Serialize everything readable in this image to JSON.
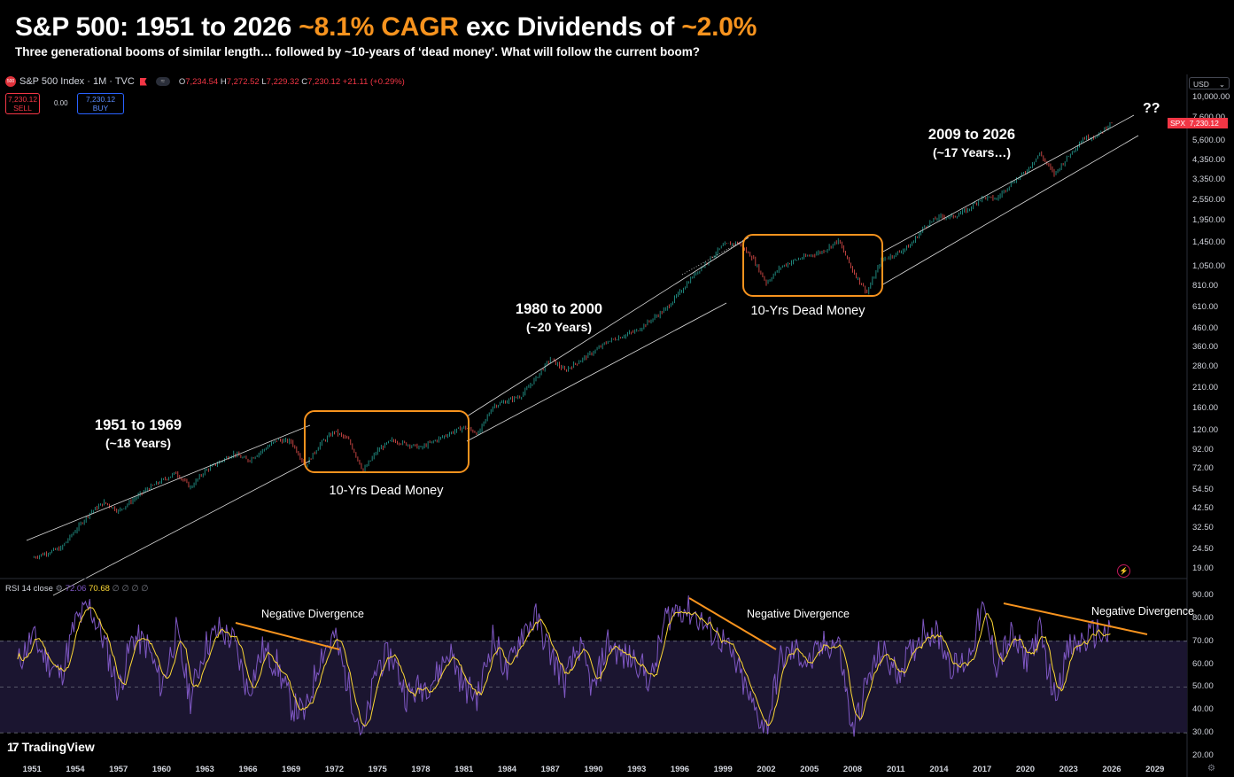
{
  "header": {
    "title_main": "S&P 500: 1951 to 2026",
    "title_hl1": "~8.1% CAGR",
    "title_mid": "exc Dividends of",
    "title_hl2": "~2.0%",
    "subtitle": "Three generational booms of similar length… followed by ~10-years of ‘dead money’. What will follow the current boom?"
  },
  "toolbar": {
    "symbol_badge": "500",
    "symbol": "S&P 500 Index · 1M · TVC",
    "o_label": "O",
    "o": "7,234.54",
    "h_label": "H",
    "h": "7,272.52",
    "l_label": "L",
    "l": "7,229.32",
    "c_label": "C",
    "c": "7,230.12",
    "change": "+21.11 (+0.29%)",
    "sell_price": "7,230.12",
    "sell_label": "SELL",
    "spread": "0.00",
    "buy_price": "7,230.12",
    "buy_label": "BUY",
    "currency": "USD"
  },
  "price_tag": {
    "symbol": "SPX",
    "value": "7,230.12"
  },
  "rsi_legend": {
    "label": "RSI 14 close",
    "rsi": "72.06",
    "ma": "70.68",
    "extra": "∅ ∅ ∅ ∅"
  },
  "annotations": {
    "boom1": {
      "title": "1951 to 1969",
      "sub": "(~18 Years)"
    },
    "boom2": {
      "title": "1980 to 2000",
      "sub": "(~20 Years)"
    },
    "boom3": {
      "title": "2009 to 2026",
      "sub": "(~17 Years…)"
    },
    "dead1": "10-Yrs Dead Money",
    "dead2": "10-Yrs Dead Money",
    "neg1": "Negative Divergence",
    "neg2": "Negative Divergence",
    "neg3": "Negative Divergence",
    "question": "??"
  },
  "branding": {
    "logo_text": "TradingView"
  },
  "colors": {
    "up": "#26a69a",
    "down": "#ef5350",
    "highlight": "#f7931e",
    "rsi": "#7e57c2",
    "rsi_ma": "#fdd835"
  },
  "chart_data": [
    {
      "type": "line",
      "name": "price",
      "scale": "log",
      "x_ticks": [
        "1951",
        "1954",
        "1957",
        "1960",
        "1963",
        "1966",
        "1969",
        "1972",
        "1975",
        "1978",
        "1981",
        "1984",
        "1987",
        "1990",
        "1993",
        "1996",
        "1999",
        "2002",
        "2005",
        "2008",
        "2011",
        "2014",
        "2017",
        "2020",
        "2023",
        "2026",
        "2029"
      ],
      "y_ticks": [
        "10,000.00",
        "7,600.00",
        "5,600.00",
        "4,350.00",
        "3,350.00",
        "2,550.00",
        "1,950.00",
        "1,450.00",
        "1,050.00",
        "810.00",
        "610.00",
        "460.00",
        "360.00",
        "280.00",
        "210.00",
        "160.00",
        "120.00",
        "92.00",
        "72.00",
        "54.50",
        "42.50",
        "32.50",
        "24.50",
        "19.00"
      ],
      "ylim": [
        19,
        10000
      ],
      "xlim": [
        1950,
        2030
      ],
      "x": [
        1951,
        1953,
        1955,
        1956,
        1957,
        1959,
        1961,
        1962,
        1963,
        1965,
        1966,
        1968,
        1969,
        1970,
        1971,
        1972,
        1973,
        1974,
        1975,
        1976,
        1978,
        1980,
        1981,
        1982,
        1983,
        1985,
        1986,
        1987,
        1988,
        1990,
        1991,
        1993,
        1995,
        1996,
        1997,
        1998,
        1999,
        2000,
        2001,
        2002,
        2003,
        2004,
        2006,
        2007,
        2008,
        2009,
        2010,
        2011,
        2012,
        2013,
        2014,
        2015,
        2016,
        2017,
        2018,
        2019,
        2020,
        2021,
        2022,
        2023,
        2024,
        2025,
        2026
      ],
      "values": [
        22,
        25,
        40,
        46,
        41,
        55,
        68,
        56,
        70,
        88,
        80,
        105,
        103,
        75,
        100,
        118,
        105,
        70,
        92,
        105,
        95,
        115,
        125,
        115,
        165,
        190,
        240,
        310,
        265,
        340,
        390,
        450,
        600,
        750,
        950,
        1150,
        1400,
        1450,
        1200,
        850,
        1050,
        1150,
        1300,
        1500,
        1000,
        750,
        1150,
        1250,
        1400,
        1800,
        2050,
        2050,
        2250,
        2650,
        2600,
        3200,
        3700,
        4750,
        3600,
        4600,
        5800,
        6000,
        7230
      ]
    },
    {
      "type": "line",
      "name": "rsi",
      "ylim": [
        20,
        90
      ],
      "y_ticks": [
        "90.00",
        "80.00",
        "70.00",
        "60.00",
        "50.00",
        "40.00",
        "30.00",
        "20.00"
      ],
      "levels": [
        70,
        50,
        30
      ],
      "x": [
        1950,
        1951,
        1952,
        1953,
        1954,
        1955,
        1956,
        1957,
        1958,
        1959,
        1960,
        1961,
        1962,
        1963,
        1964,
        1965,
        1966,
        1967,
        1968,
        1969,
        1970,
        1971,
        1972,
        1973,
        1974,
        1975,
        1976,
        1977,
        1978,
        1979,
        1980,
        1981,
        1982,
        1983,
        1984,
        1985,
        1986,
        1987,
        1988,
        1989,
        1990,
        1991,
        1992,
        1993,
        1994,
        1995,
        1996,
        1997,
        1998,
        1999,
        2000,
        2001,
        2002,
        2003,
        2004,
        2005,
        2006,
        2007,
        2008,
        2009,
        2010,
        2011,
        2012,
        2013,
        2014,
        2015,
        2016,
        2017,
        2018,
        2019,
        2020,
        2021,
        2022,
        2023,
        2024,
        2025,
        2026
      ],
      "values": [
        60,
        72,
        62,
        55,
        78,
        85,
        70,
        48,
        72,
        68,
        50,
        74,
        45,
        68,
        75,
        70,
        48,
        66,
        60,
        42,
        38,
        64,
        72,
        50,
        28,
        60,
        64,
        46,
        50,
        54,
        66,
        50,
        46,
        72,
        56,
        74,
        80,
        65,
        52,
        68,
        48,
        70,
        63,
        62,
        52,
        80,
        85,
        82,
        75,
        70,
        58,
        42,
        32,
        62,
        66,
        60,
        68,
        70,
        30,
        52,
        66,
        56,
        64,
        76,
        72,
        58,
        62,
        84,
        60,
        72,
        62,
        74,
        46,
        66,
        70,
        74,
        72
      ]
    }
  ]
}
